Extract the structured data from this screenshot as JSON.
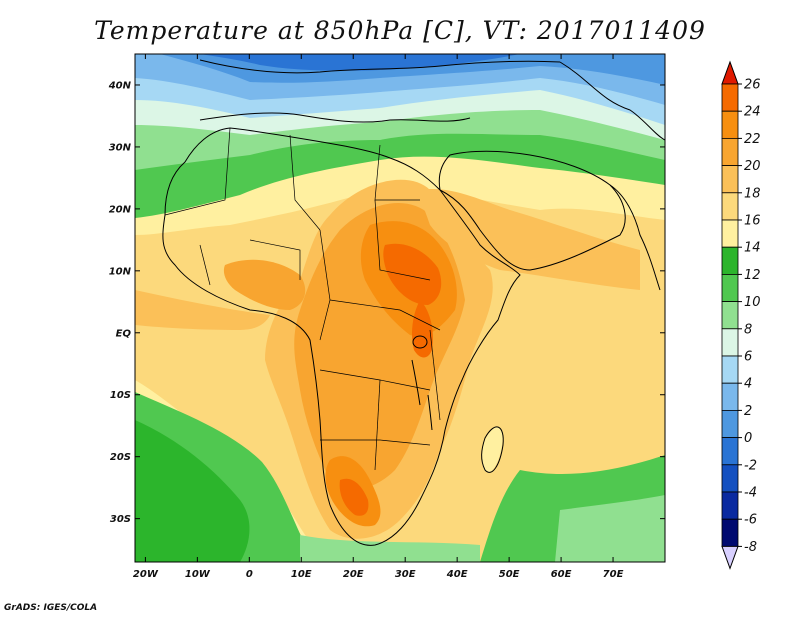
{
  "title": "Temperature at 850hPa [C], VT: 2017011409",
  "credit": "GrADS: IGES/COLA",
  "map": {
    "lat_labels": [
      "40N",
      "30N",
      "20N",
      "10N",
      "EQ",
      "10S",
      "20S",
      "30S"
    ],
    "lat_values": [
      40,
      30,
      20,
      10,
      0,
      -10,
      -20,
      -30
    ],
    "lon_labels": [
      "20W",
      "10W",
      "0",
      "10E",
      "20E",
      "30E",
      "40E",
      "50E",
      "60E",
      "70E"
    ],
    "lon_values": [
      -20,
      -10,
      0,
      10,
      20,
      30,
      40,
      50,
      60,
      70
    ],
    "lon_range": [
      -22,
      80
    ],
    "lat_range": [
      -37,
      45
    ]
  },
  "colorbar": {
    "levels": [
      "26",
      "24",
      "22",
      "20",
      "18",
      "16",
      "14",
      "12",
      "10",
      "8",
      "6",
      "4",
      "2",
      "0",
      "-2",
      "-4",
      "-6",
      "-8"
    ],
    "colors_top_to_bottom": [
      "#f03a00",
      "#f56a00",
      "#f78f10",
      "#f8a530",
      "#fbc058",
      "#fcd97c",
      "#fff0a0",
      "#2cb52c",
      "#50c850",
      "#90e090",
      "#dcf6e6",
      "#a6d8f4",
      "#7ab8ec",
      "#4e98e0",
      "#2a74d4",
      "#1450c0",
      "#0a2aa0",
      "#000a70"
    ],
    "over_color": "#e01a00",
    "under_color": "#d8d0ff"
  }
}
